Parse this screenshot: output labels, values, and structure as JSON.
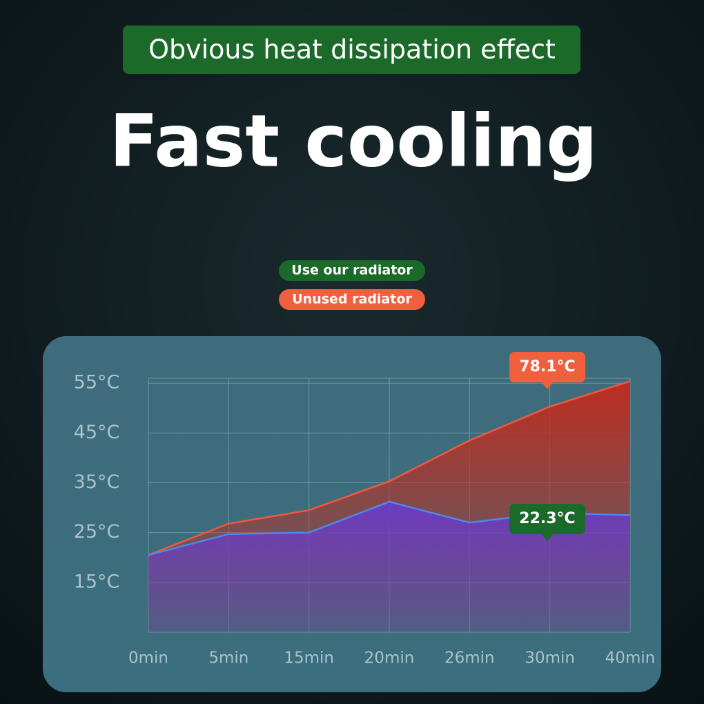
{
  "chart_data": {
    "type": "area",
    "title": "Fast cooling",
    "subtitle": "Obvious heat dissipation effect",
    "categories": [
      "0min",
      "5min",
      "15min",
      "20min",
      "26min",
      "30min",
      "40min"
    ],
    "series": [
      {
        "name": "Use our radiator",
        "color": "#4f86f0",
        "badge_color": "#1c6a2a",
        "fill_color": "#6a3cc8",
        "values": [
          20.5,
          24.7,
          25,
          31.2,
          27,
          29,
          28.5
        ]
      },
      {
        "name": "Unused radiator",
        "color": "#f05a3c",
        "badge_color": "#f0603f",
        "fill_color": "#c42a1c",
        "values": [
          20.5,
          26.8,
          29.5,
          35.3,
          43.5,
          50.3,
          55.4
        ]
      }
    ],
    "ylim": [
      5,
      56
    ],
    "yticks": [
      {
        "value": 15,
        "label": "15°C"
      },
      {
        "value": 25,
        "label": "25°C"
      },
      {
        "value": 35,
        "label": "35°C"
      },
      {
        "value": 45,
        "label": "45°C"
      },
      {
        "value": 55,
        "label": "55°C"
      }
    ],
    "grid": true,
    "annotations": [
      {
        "text": "78.1°C",
        "color": "#f0603f"
      },
      {
        "text": "22.3°C",
        "color": "#1c6a2a"
      }
    ]
  }
}
